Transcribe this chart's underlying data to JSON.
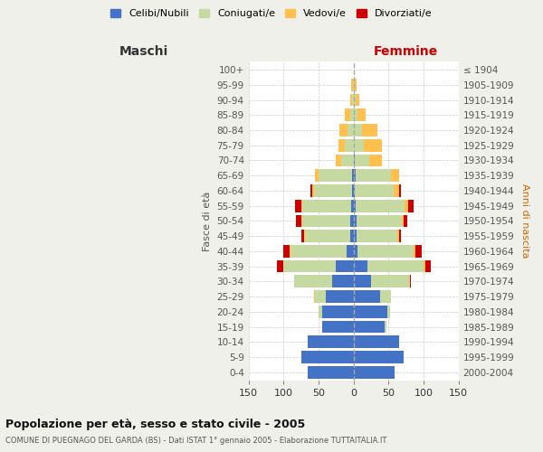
{
  "age_groups": [
    "0-4",
    "5-9",
    "10-14",
    "15-19",
    "20-24",
    "25-29",
    "30-34",
    "35-39",
    "40-44",
    "45-49",
    "50-54",
    "55-59",
    "60-64",
    "65-69",
    "70-74",
    "75-79",
    "80-84",
    "85-89",
    "90-94",
    "95-99",
    "100+"
  ],
  "birth_years": [
    "2000-2004",
    "1995-1999",
    "1990-1994",
    "1985-1989",
    "1980-1984",
    "1975-1979",
    "1970-1974",
    "1965-1969",
    "1960-1964",
    "1955-1959",
    "1950-1954",
    "1945-1949",
    "1940-1944",
    "1935-1939",
    "1930-1934",
    "1925-1929",
    "1920-1924",
    "1915-1919",
    "1910-1914",
    "1905-1909",
    "≤ 1904"
  ],
  "males": {
    "celibi": [
      65,
      75,
      65,
      45,
      45,
      40,
      30,
      25,
      10,
      5,
      5,
      3,
      2,
      2,
      0,
      0,
      0,
      0,
      0,
      0,
      0
    ],
    "coniugati": [
      0,
      0,
      0,
      0,
      5,
      15,
      55,
      75,
      80,
      65,
      68,
      70,
      55,
      48,
      18,
      12,
      8,
      5,
      2,
      1,
      0
    ],
    "vedovi": [
      0,
      0,
      0,
      0,
      0,
      1,
      0,
      1,
      1,
      1,
      1,
      2,
      2,
      5,
      8,
      10,
      12,
      8,
      3,
      2,
      0
    ],
    "divorziati": [
      0,
      0,
      0,
      0,
      0,
      0,
      0,
      8,
      10,
      3,
      8,
      8,
      3,
      0,
      0,
      0,
      0,
      0,
      0,
      0,
      0
    ]
  },
  "females": {
    "nubili": [
      58,
      72,
      65,
      45,
      48,
      38,
      25,
      20,
      6,
      4,
      4,
      3,
      2,
      3,
      2,
      0,
      0,
      0,
      0,
      0,
      0
    ],
    "coniugate": [
      0,
      0,
      0,
      2,
      4,
      15,
      55,
      80,
      80,
      58,
      65,
      70,
      55,
      50,
      20,
      15,
      12,
      5,
      3,
      1,
      0
    ],
    "vedove": [
      0,
      0,
      0,
      0,
      0,
      0,
      1,
      2,
      2,
      3,
      3,
      5,
      8,
      12,
      18,
      25,
      22,
      12,
      5,
      3,
      1
    ],
    "divorziate": [
      0,
      0,
      0,
      0,
      0,
      0,
      1,
      8,
      10,
      3,
      5,
      8,
      3,
      0,
      0,
      0,
      0,
      0,
      0,
      0,
      0
    ]
  },
  "color_celibi": "#4472c4",
  "color_coniugati": "#c5d9a0",
  "color_vedovi": "#ffc04d",
  "color_divorziati": "#cc0000",
  "xlim": 150,
  "title": "Popolazione per età, sesso e stato civile - 2005",
  "subtitle": "COMUNE DI PUEGNAGO DEL GARDA (BS) - Dati ISTAT 1° gennaio 2005 - Elaborazione TUTTAITALIA.IT",
  "ylabel_left": "Fasce di età",
  "ylabel_right": "Anni di nascita",
  "label_maschi": "Maschi",
  "label_femmine": "Femmine",
  "legend_labels": [
    "Celibi/Nubili",
    "Coniugati/e",
    "Vedovi/e",
    "Divorziati/e"
  ],
  "bg_color": "#f0f0eb",
  "plot_bg_color": "#ffffff"
}
